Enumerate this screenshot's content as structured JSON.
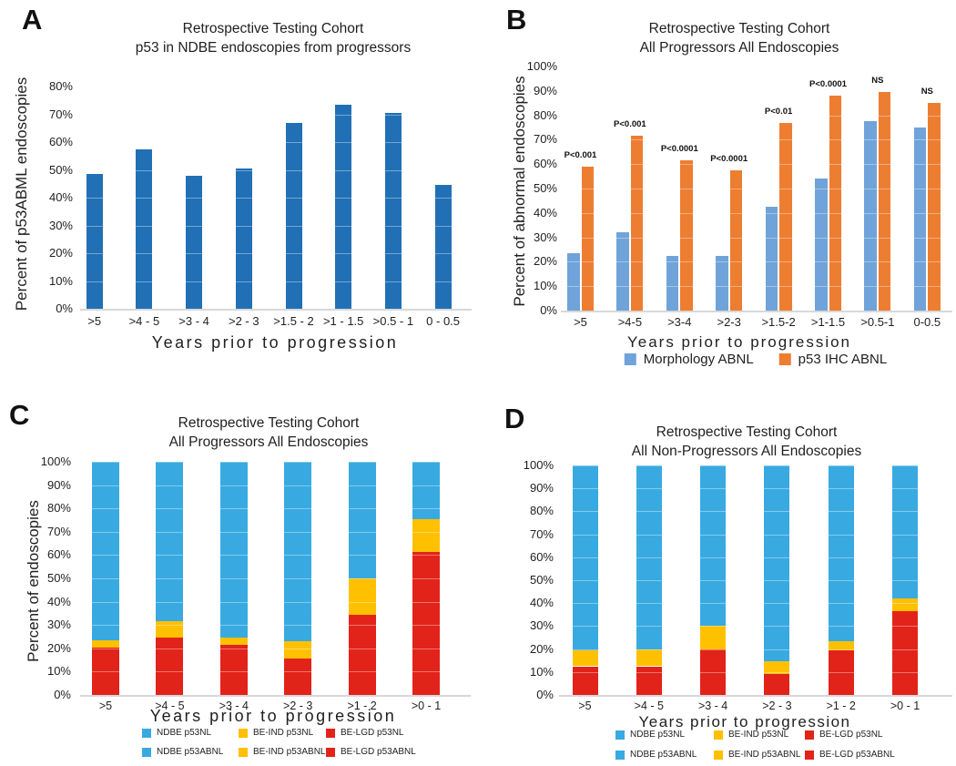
{
  "figure": {
    "background": "#FFFFFF",
    "axis_line_color": "#D8D8D8",
    "text_color": "#1F1F1F"
  },
  "chart_data": [
    {
      "panel": "A",
      "type": "bar",
      "title": "Retrospective Testing Cohort",
      "subtitle": "p53 in NDBE endoscopies from progressors",
      "ylabel": "Percent of p53ABML endoscopies",
      "xlabel": "Years prior to progression",
      "ylim": [
        0,
        80
      ],
      "ytick_step": 10,
      "ytick_suffix": "%",
      "grid": true,
      "legend_position": "none",
      "bar_color": "#2170B5",
      "categories": [
        ">5",
        ">4 - 5",
        ">3 - 4",
        ">2 - 3",
        ">1.5 - 2",
        ">1 - 1.5",
        ">0.5 - 1",
        "0 - 0.5"
      ],
      "values": [
        48.5,
        57.5,
        48,
        50.5,
        67,
        73.5,
        70.5,
        44.5
      ]
    },
    {
      "panel": "B",
      "type": "grouped-bar",
      "title": "Retrospective Testing Cohort",
      "subtitle": "All Progressors All Endoscopies",
      "ylabel": "Percent of abnormal endoscopies",
      "xlabel": "Years prior to progression",
      "ylim": [
        0,
        100
      ],
      "ytick_step": 10,
      "ytick_suffix": "%",
      "grid": true,
      "legend_position": "bottom",
      "categories": [
        ">5",
        ">4-5",
        ">3-4",
        ">2-3",
        ">1.5-2",
        ">1-1.5",
        ">0.5-1",
        "0-0.5"
      ],
      "series": [
        {
          "name": "Morphology ABNL",
          "color": "#6FA3D9",
          "values": [
            23.5,
            32,
            22.5,
            22.5,
            42.5,
            54,
            77.5,
            75
          ]
        },
        {
          "name": "p53 IHC ABNL",
          "color": "#ED7D31",
          "values": [
            59,
            71.5,
            61.5,
            57.5,
            77,
            88,
            89.5,
            85
          ]
        }
      ],
      "annotations": [
        "P<0.001",
        "P<0.001",
        "P<0.0001",
        "P<0.0001",
        "P<0.01",
        "P<0.0001",
        "NS",
        "NS"
      ]
    },
    {
      "panel": "C",
      "type": "stacked-bar",
      "title": "Retrospective Testing Cohort",
      "subtitle": "All Progressors All Endoscopies",
      "ylabel": "Percent of endoscopies",
      "xlabel": "Years prior to progression",
      "ylim": [
        0,
        100
      ],
      "ytick_step": 10,
      "ytick_suffix": "%",
      "grid": true,
      "legend_position": "bottom",
      "categories": [
        ">5",
        ">4 - 5",
        ">3 - 4",
        ">2 - 3",
        ">1 - 2",
        ">0 - 1"
      ],
      "series": [
        {
          "name": "BE-LGD p53ABNL",
          "color": "#E2231A",
          "pattern": true,
          "values": [
            19.5,
            23.5,
            20.5,
            15,
            32.5,
            60
          ]
        },
        {
          "name": "BE-LGD p53NL",
          "color": "#E2231A",
          "pattern": false,
          "values": [
            1,
            1,
            1,
            0.5,
            2,
            1.5
          ]
        },
        {
          "name": "BE-IND p53ABNL",
          "color": "#FFC000",
          "pattern": true,
          "values": [
            1.5,
            5.5,
            2,
            6,
            13.5,
            11.5
          ]
        },
        {
          "name": "BE-IND p53NL",
          "color": "#FFC000",
          "pattern": false,
          "values": [
            1.5,
            1.5,
            1,
            1.5,
            2,
            2.5
          ]
        },
        {
          "name": "NDBE p53ABNL",
          "color": "#38AAE1",
          "pattern": true,
          "values": [
            37.5,
            39.5,
            36.5,
            35.5,
            34.5,
            14.5
          ]
        },
        {
          "name": "NDBE p53NL",
          "color": "#38AAE1",
          "pattern": false,
          "values": [
            39,
            29,
            39,
            41.5,
            15.5,
            10
          ]
        }
      ]
    },
    {
      "panel": "D",
      "type": "stacked-bar",
      "title": "Retrospective Testing Cohort",
      "subtitle": "All Non-Progressors All Endoscopies",
      "ylabel": "",
      "xlabel": "Years prior to progression",
      "ylim": [
        0,
        100
      ],
      "ytick_step": 10,
      "ytick_suffix": "%",
      "grid": true,
      "legend_position": "bottom",
      "categories": [
        ">5",
        ">4 - 5",
        ">3 - 4",
        ">2 - 3",
        ">1 - 2",
        ">0 - 1"
      ],
      "series": [
        {
          "name": "BE-LGD p53ABNL",
          "color": "#E2231A",
          "pattern": true,
          "values": [
            4,
            5,
            9.5,
            1.5,
            8,
            22.5
          ]
        },
        {
          "name": "BE-LGD p53NL",
          "color": "#E2231A",
          "pattern": false,
          "values": [
            8.5,
            7.5,
            10.5,
            7.5,
            11.5,
            14
          ]
        },
        {
          "name": "BE-IND p53ABNL",
          "color": "#FFC000",
          "pattern": true,
          "values": [
            1.5,
            1.5,
            1,
            2.5,
            0.5,
            2
          ]
        },
        {
          "name": "BE-IND p53NL",
          "color": "#FFC000",
          "pattern": false,
          "values": [
            5.5,
            6,
            9,
            3,
            3.5,
            3.5
          ]
        },
        {
          "name": "NDBE p53ABNL",
          "color": "#38AAE1",
          "pattern": true,
          "values": [
            5,
            1.5,
            4.5,
            9.5,
            6.5,
            13
          ]
        },
        {
          "name": "NDBE p53NL",
          "color": "#38AAE1",
          "pattern": false,
          "values": [
            75.5,
            78.5,
            65.5,
            76,
            70,
            45
          ]
        }
      ]
    }
  ]
}
